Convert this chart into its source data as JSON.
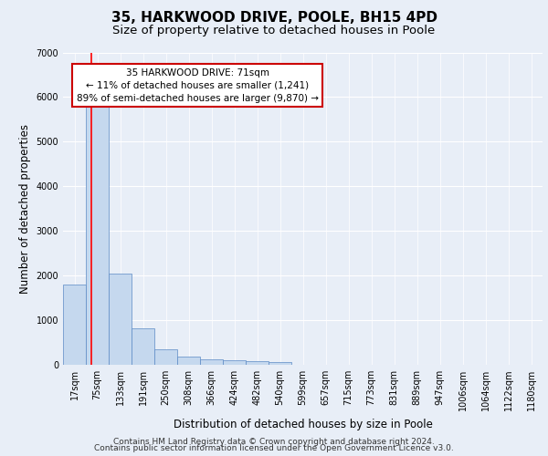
{
  "title1": "35, HARKWOOD DRIVE, POOLE, BH15 4PD",
  "title2": "Size of property relative to detached houses in Poole",
  "xlabel": "Distribution of detached houses by size in Poole",
  "ylabel": "Number of detached properties",
  "categories": [
    "17sqm",
    "75sqm",
    "133sqm",
    "191sqm",
    "250sqm",
    "308sqm",
    "366sqm",
    "424sqm",
    "482sqm",
    "540sqm",
    "599sqm",
    "657sqm",
    "715sqm",
    "773sqm",
    "831sqm",
    "889sqm",
    "947sqm",
    "1006sqm",
    "1064sqm",
    "1122sqm",
    "1180sqm"
  ],
  "values": [
    1800,
    5800,
    2050,
    820,
    340,
    190,
    120,
    110,
    80,
    65,
    0,
    0,
    0,
    0,
    0,
    0,
    0,
    0,
    0,
    0,
    0
  ],
  "bar_color": "#c5d8ee",
  "bar_edge_color": "#5b8ac5",
  "red_line_x": 0.72,
  "annotation_text": "35 HARKWOOD DRIVE: 71sqm\n← 11% of detached houses are smaller (1,241)\n89% of semi-detached houses are larger (9,870) →",
  "ylim": [
    0,
    7000
  ],
  "yticks": [
    0,
    1000,
    2000,
    3000,
    4000,
    5000,
    6000,
    7000
  ],
  "footer1": "Contains HM Land Registry data © Crown copyright and database right 2024.",
  "footer2": "Contains public sector information licensed under the Open Government Licence v3.0.",
  "background_color": "#e8eef7",
  "plot_bg_color": "#e8eef7",
  "grid_color": "#ffffff",
  "annotation_box_color": "#ffffff",
  "annotation_box_edge_color": "#cc0000",
  "title1_fontsize": 11,
  "title2_fontsize": 9.5,
  "tick_fontsize": 7,
  "axis_label_fontsize": 8.5,
  "footer_fontsize": 6.5
}
